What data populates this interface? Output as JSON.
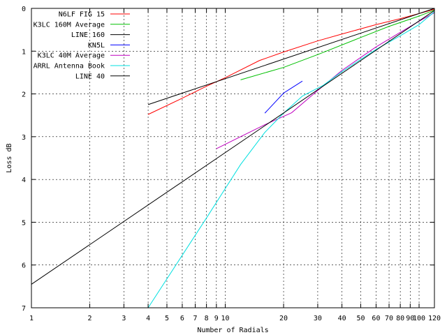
{
  "chart_data": {
    "type": "line",
    "title": "",
    "xlabel": "Number of Radials",
    "ylabel": "Loss dB",
    "xscale": "log",
    "xlim": [
      1,
      120
    ],
    "ylim": [
      0,
      7
    ],
    "y_inverted": true,
    "grid": "dashed",
    "legend_position": "top-left",
    "x_ticks": [
      {
        "value": 1,
        "label": "1"
      },
      {
        "value": 2,
        "label": "2"
      },
      {
        "value": 3,
        "label": "3"
      },
      {
        "value": 4,
        "label": "4"
      },
      {
        "value": 5,
        "label": "5"
      },
      {
        "value": 6,
        "label": "6"
      },
      {
        "value": 7,
        "label": "7"
      },
      {
        "value": 8,
        "label": "8"
      },
      {
        "value": 9,
        "label": "9"
      },
      {
        "value": 10,
        "label": "10"
      },
      {
        "value": 20,
        "label": "20"
      },
      {
        "value": 30,
        "label": "30"
      },
      {
        "value": 40,
        "label": "40"
      },
      {
        "value": 50,
        "label": "50"
      },
      {
        "value": 60,
        "label": "60"
      },
      {
        "value": 70,
        "label": "70"
      },
      {
        "value": 80,
        "label": "80"
      },
      {
        "value": 90,
        "label": "90"
      },
      {
        "value": 100,
        "label": "100"
      },
      {
        "value": 120,
        "label": "120"
      }
    ],
    "y_ticks": [
      {
        "value": 0,
        "label": "0"
      },
      {
        "value": 1,
        "label": "1"
      },
      {
        "value": 2,
        "label": "2"
      },
      {
        "value": 3,
        "label": "3"
      },
      {
        "value": 4,
        "label": "4"
      },
      {
        "value": 5,
        "label": "5"
      },
      {
        "value": 6,
        "label": "6"
      },
      {
        "value": 7,
        "label": "7"
      }
    ],
    "series": [
      {
        "name": "N6LF FIG 15",
        "color": "#ff0000",
        "points": [
          [
            4,
            2.48
          ],
          [
            6,
            2.1
          ],
          [
            8,
            1.82
          ],
          [
            10,
            1.62
          ],
          [
            15,
            1.22
          ],
          [
            20,
            1.02
          ],
          [
            30,
            0.76
          ],
          [
            40,
            0.6
          ],
          [
            60,
            0.38
          ],
          [
            80,
            0.24
          ],
          [
            100,
            0.12
          ],
          [
            120,
            0.02
          ]
        ]
      },
      {
        "name": "K3LC 160M Average",
        "color": "#00c000",
        "points": [
          [
            12,
            1.67
          ],
          [
            20,
            1.38
          ],
          [
            30,
            1.08
          ],
          [
            50,
            0.68
          ],
          [
            70,
            0.42
          ],
          [
            100,
            0.18
          ],
          [
            120,
            0.04
          ]
        ]
      },
      {
        "name": "LINE 160",
        "color": "#000000",
        "points": [
          [
            4,
            2.25
          ],
          [
            120,
            0.0
          ]
        ]
      },
      {
        "name": "KN5L",
        "color": "#0000ff",
        "points": [
          [
            16,
            2.45
          ],
          [
            20,
            1.98
          ],
          [
            25,
            1.7
          ]
        ]
      },
      {
        "name": "K3LC 40M Average",
        "color": "#c000c0",
        "points": [
          [
            9,
            3.28
          ],
          [
            12,
            3.0
          ],
          [
            16,
            2.72
          ],
          [
            22,
            2.44
          ],
          [
            30,
            1.92
          ],
          [
            40,
            1.45
          ],
          [
            60,
            0.9
          ],
          [
            80,
            0.56
          ],
          [
            100,
            0.3
          ],
          [
            120,
            0.1
          ]
        ]
      },
      {
        "name": "ARRL Antenna Book",
        "color": "#00e0e0",
        "points": [
          [
            4,
            7.0
          ],
          [
            8,
            4.9
          ],
          [
            12,
            3.65
          ],
          [
            16,
            2.9
          ],
          [
            20,
            2.45
          ],
          [
            25,
            2.05
          ],
          [
            32,
            1.8
          ],
          [
            40,
            1.48
          ],
          [
            60,
            0.96
          ],
          [
            80,
            0.64
          ],
          [
            100,
            0.38
          ],
          [
            120,
            0.08
          ]
        ]
      },
      {
        "name": "LINE 40",
        "color": "#000000",
        "points": [
          [
            1,
            6.45
          ],
          [
            120,
            0.05
          ]
        ]
      }
    ]
  }
}
